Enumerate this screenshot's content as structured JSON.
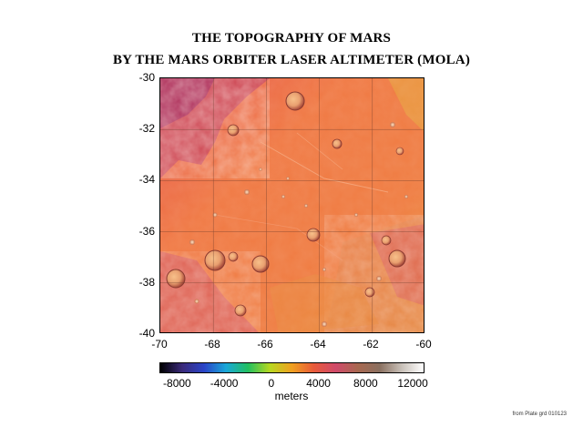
{
  "title_line1": "THE TOPOGRAPHY OF MARS",
  "title_line2": "BY THE MARS ORBITER LASER ALTIMETER (MOLA)",
  "map": {
    "lon_range": [
      -70,
      -60
    ],
    "lat_range": [
      -40,
      -30
    ],
    "x_ticks": [
      "-70",
      "-68",
      "-66",
      "-64",
      "-62",
      "-60"
    ],
    "y_ticks": [
      "-30",
      "-32",
      "-34",
      "-36",
      "-38",
      "-40"
    ],
    "base_color": "#f07a45",
    "highland_color": "#c8405a",
    "grid_color": "#7a4a3a"
  },
  "colorbar": {
    "ticks": [
      "-8000",
      "-4000",
      "0",
      "4000",
      "8000",
      "12000"
    ],
    "tick_values": [
      -8000,
      -4000,
      0,
      4000,
      8000,
      12000
    ],
    "range": [
      -9500,
      13000
    ],
    "label": "meters",
    "stops": [
      "#000000",
      "#3b2a7a",
      "#2a44c8",
      "#19a8d8",
      "#22c060",
      "#b8d820",
      "#f0a020",
      "#e85a3a",
      "#d04a6a",
      "#a86850",
      "#8a7060",
      "#c8c0b8",
      "#ffffff"
    ]
  },
  "credit": "from Plate grd 010123"
}
